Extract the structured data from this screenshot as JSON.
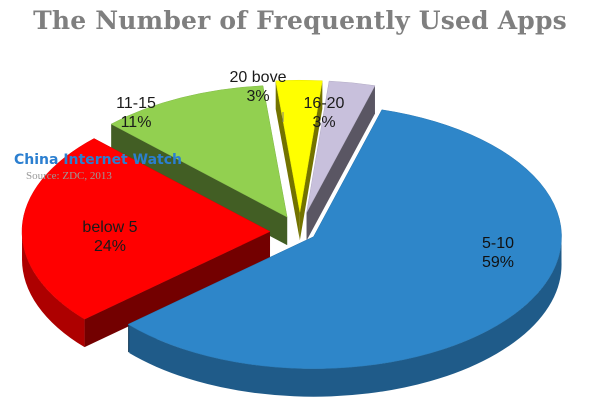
{
  "chart_data": {
    "type": "pie",
    "title": "The Number of Frequently Used Apps",
    "slices": [
      {
        "label": "5-10",
        "value": 59,
        "value_label": "59%",
        "color": "#2e86c9"
      },
      {
        "label": "below 5",
        "value": 24,
        "value_label": "24%",
        "color": "#ff0000"
      },
      {
        "label": "11-15",
        "value": 11,
        "value_label": "11%",
        "color": "#92d050"
      },
      {
        "label": "20 bove",
        "value": 3,
        "value_label": "3%",
        "color": "#ffff00"
      },
      {
        "label": "16-20",
        "value": 3,
        "value_label": "3%",
        "color": "#c8c0dc"
      }
    ],
    "style": "3d-exploded"
  },
  "watermark": {
    "brand": "China Internet Watch",
    "source": "Source: ZDC, 2013",
    "brand_color": "#2b7fd0"
  }
}
